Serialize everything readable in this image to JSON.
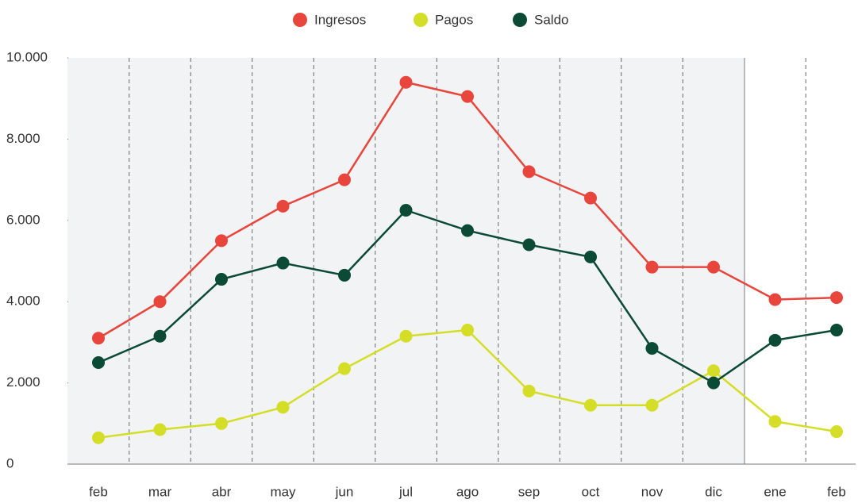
{
  "chart_data": {
    "type": "line",
    "categories": [
      "feb",
      "mar",
      "abr",
      "may",
      "jun",
      "jul",
      "ago",
      "sep",
      "oct",
      "nov",
      "dic",
      "ene",
      "feb"
    ],
    "series": [
      {
        "name": "Ingresos",
        "color": "#e8453c",
        "values": [
          3100,
          4000,
          5500,
          6350,
          7000,
          9400,
          9050,
          7200,
          6550,
          4850,
          4850,
          4050,
          4100
        ]
      },
      {
        "name": "Pagos",
        "color": "#d4de26",
        "values": [
          650,
          850,
          1000,
          1400,
          2350,
          3150,
          3300,
          1800,
          1450,
          1450,
          2300,
          1050,
          800
        ]
      },
      {
        "name": "Saldo",
        "color": "#0b4a35",
        "values": [
          2500,
          3150,
          4550,
          4950,
          4650,
          6250,
          5750,
          5400,
          5100,
          2850,
          2000,
          3050,
          3300
        ]
      }
    ],
    "ylim": [
      0,
      10000
    ],
    "yticks": [
      0,
      {
        "value": 2000,
        "label": "2.000"
      },
      {
        "value": 4000,
        "label": "4.000"
      },
      {
        "value": 6000,
        "label": "6.000"
      },
      {
        "value": 8000,
        "label": "8.000"
      },
      {
        "value": 10000,
        "label": "10.000"
      }
    ],
    "grid": true
  }
}
